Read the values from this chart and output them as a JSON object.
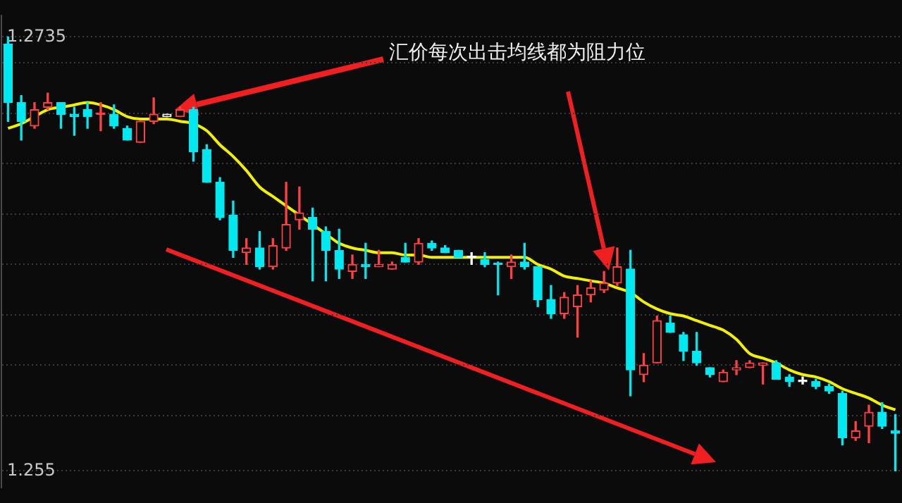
{
  "chart_data": {
    "type": "candlestick",
    "annotations": [
      "汇价每次出击均线都为阻力位"
    ],
    "categories": [
      null,
      null,
      null,
      null,
      null,
      null,
      null,
      null,
      null,
      null,
      null,
      null,
      null,
      null,
      null,
      null,
      null,
      null,
      null,
      null,
      null,
      null,
      null,
      null,
      null,
      null,
      null,
      null,
      null,
      null,
      null,
      null,
      null,
      null,
      null,
      null,
      null,
      null,
      null,
      null,
      null,
      null,
      null,
      null,
      null,
      null,
      null,
      null,
      null,
      null,
      null,
      null,
      null,
      null,
      null,
      null,
      null,
      null,
      null,
      null,
      null,
      null,
      null,
      null,
      null,
      null,
      null,
      null
    ],
    "ohlc": [
      [
        1.2732,
        1.2735,
        1.2699,
        1.2707
      ],
      [
        1.2707,
        1.271,
        1.2691,
        1.2699
      ],
      [
        1.2697,
        1.2707,
        1.2696,
        1.2704
      ],
      [
        1.2705,
        1.2711,
        1.2704,
        1.2707
      ],
      [
        1.2707,
        1.2707,
        1.2696,
        1.2702
      ],
      [
        1.2702,
        1.2705,
        1.2693,
        1.2701
      ],
      [
        1.2704,
        1.2707,
        1.2696,
        1.2701
      ],
      [
        1.2702,
        1.2707,
        1.2695,
        1.2702
      ],
      [
        1.2702,
        1.2706,
        1.2696,
        1.2697
      ],
      [
        1.2696,
        1.2697,
        1.2691,
        1.2691
      ],
      [
        1.269,
        1.2699,
        1.269,
        1.2699
      ],
      [
        1.2699,
        1.2709,
        1.2698,
        1.2702
      ],
      [
        1.2701,
        1.2702,
        1.2701,
        1.2702
      ],
      [
        1.2701,
        1.2705,
        1.2701,
        1.2704
      ],
      [
        1.2704,
        1.2705,
        1.2682,
        1.2686
      ],
      [
        1.2687,
        1.2689,
        1.2673,
        1.2673
      ],
      [
        1.2673,
        1.2675,
        1.2657,
        1.2658
      ],
      [
        1.2659,
        1.2665,
        1.2641,
        1.2644
      ],
      [
        1.2643,
        1.2649,
        1.2638,
        1.2645
      ],
      [
        1.2645,
        1.2652,
        1.2636,
        1.2637
      ],
      [
        1.2637,
        1.2649,
        1.2636,
        1.2646
      ],
      [
        1.2645,
        1.2673,
        1.2644,
        1.2655
      ],
      [
        1.2657,
        1.2671,
        1.2653,
        1.266
      ],
      [
        1.2658,
        1.2662,
        1.2631,
        1.2653
      ],
      [
        1.2652,
        1.2654,
        1.2631,
        1.2644
      ],
      [
        1.2644,
        1.2653,
        1.2632,
        1.2636
      ],
      [
        1.2635,
        1.2642,
        1.2632,
        1.2638
      ],
      [
        1.2638,
        1.2647,
        1.2632,
        1.2637
      ],
      [
        1.2637,
        1.2644,
        1.2637,
        1.2638
      ],
      [
        1.2636,
        1.2639,
        1.2636,
        1.2638
      ],
      [
        1.2641,
        1.2647,
        1.2639,
        1.2639
      ],
      [
        1.2639,
        1.2649,
        1.2638,
        1.2647
      ],
      [
        1.2647,
        1.2648,
        1.2644,
        1.2645
      ],
      [
        1.2645,
        1.2646,
        1.2643,
        1.2643
      ],
      [
        1.2644,
        1.2644,
        1.2641,
        1.2641
      ],
      [
        1.2641,
        1.2643,
        1.2638,
        1.2641
      ],
      [
        1.264,
        1.2643,
        1.2637,
        1.2638
      ],
      [
        1.2638,
        1.2639,
        1.2625,
        1.2638
      ],
      [
        1.2637,
        1.2642,
        1.2632,
        1.2639
      ],
      [
        1.2639,
        1.2647,
        1.2636,
        1.2637
      ],
      [
        1.2637,
        1.2637,
        1.262,
        1.2623
      ],
      [
        1.2623,
        1.2629,
        1.2615,
        1.2617
      ],
      [
        1.2617,
        1.2626,
        1.2615,
        1.2624
      ],
      [
        1.262,
        1.2629,
        1.2607,
        1.2625
      ],
      [
        1.2625,
        1.2631,
        1.2622,
        1.2628
      ],
      [
        1.2627,
        1.2635,
        1.2626,
        1.263
      ],
      [
        1.263,
        1.2645,
        1.2629,
        1.2637
      ],
      [
        1.2636,
        1.2644,
        1.2582,
        1.2593
      ],
      [
        1.2591,
        1.26,
        1.2588,
        1.2595
      ],
      [
        1.2596,
        1.2616,
        1.2596,
        1.2614
      ],
      [
        1.2613,
        1.2616,
        1.2609,
        1.2609
      ],
      [
        1.2608,
        1.2609,
        1.2597,
        1.2601
      ],
      [
        1.2601,
        1.2609,
        1.2595,
        1.2596
      ],
      [
        1.2594,
        1.2594,
        1.259,
        1.2591
      ],
      [
        1.2588,
        1.2593,
        1.2588,
        1.2592
      ],
      [
        1.2593,
        1.2597,
        1.2591,
        1.2594
      ],
      [
        1.2594,
        1.2597,
        1.2594,
        1.2596
      ],
      [
        1.2595,
        1.2596,
        1.2587,
        1.2596
      ],
      [
        1.2596,
        1.2597,
        1.2589,
        1.2589
      ],
      [
        1.259,
        1.2591,
        1.2586,
        1.2588
      ],
      [
        1.2588,
        1.259,
        1.2587,
        1.2588
      ],
      [
        1.2588,
        1.2589,
        1.2585,
        1.2586
      ],
      [
        1.2586,
        1.2587,
        1.2583,
        1.2584
      ],
      [
        1.2583,
        1.2584,
        1.2561,
        1.2564
      ],
      [
        1.2564,
        1.2571,
        1.2563,
        1.2567
      ],
      [
        1.2569,
        1.2578,
        1.2562,
        1.2575
      ],
      [
        1.2575,
        1.2579,
        1.2568,
        1.2569
      ],
      [
        1.2567,
        1.2574,
        1.255,
        1.2566
      ]
    ],
    "colors": [
      "#00e8f0",
      "#00e8f0",
      "#ff4040",
      "#ff4040",
      "#00e8f0",
      "#00e8f0",
      "#00e8f0",
      "#ff4040",
      "#00e8f0",
      "#00e8f0",
      "#ff4040",
      "#ff4040",
      "#ffffff",
      "#ff4040",
      "#00e8f0",
      "#00e8f0",
      "#00e8f0",
      "#00e8f0",
      "#ff4040",
      "#00e8f0",
      "#ff4040",
      "#ff4040",
      "#ff4040",
      "#00e8f0",
      "#00e8f0",
      "#00e8f0",
      "#ff4040",
      "#00e8f0",
      "#ff4040",
      "#ff4040",
      "#00e8f0",
      "#ff4040",
      "#00e8f0",
      "#00e8f0",
      "#00e8f0",
      "#ffffff",
      "#00e8f0",
      "#00e8f0",
      "#ff4040",
      "#00e8f0",
      "#00e8f0",
      "#00e8f0",
      "#ff4040",
      "#ff4040",
      "#ff4040",
      "#ff4040",
      "#ff4040",
      "#00e8f0",
      "#ff4040",
      "#ff4040",
      "#00e8f0",
      "#00e8f0",
      "#00e8f0",
      "#00e8f0",
      "#ff4040",
      "#ff4040",
      "#ff4040",
      "#ff4040",
      "#00e8f0",
      "#00e8f0",
      "#ffffff",
      "#00e8f0",
      "#00e8f0",
      "#00e8f0",
      "#ff4040",
      "#ff4040",
      "#00e8f0",
      "#00e8f0"
    ],
    "series": [
      {
        "type": "line",
        "color": "#f0f000",
        "values": [
          1.2696,
          1.2698,
          1.2701,
          1.2704,
          1.2705,
          1.2706,
          1.2707,
          1.2706,
          1.2704,
          1.2701,
          1.27,
          1.27,
          1.27,
          1.2699,
          1.2698,
          1.2695,
          1.2689,
          1.2684,
          1.2678,
          1.2671,
          1.2667,
          1.2663,
          1.2659,
          1.2655,
          1.2651,
          1.2647,
          1.2645,
          1.2644,
          1.2643,
          1.2643,
          1.2642,
          1.2642,
          1.2641,
          1.2641,
          1.2641,
          1.2641,
          1.2641,
          1.2641,
          1.2641,
          1.2641,
          1.2638,
          1.2636,
          1.2633,
          1.2632,
          1.2631,
          1.263,
          1.2628,
          1.2626,
          1.2622,
          1.2619,
          1.2617,
          1.2616,
          1.2614,
          1.2612,
          1.261,
          1.2606,
          1.26,
          1.2598,
          1.2596,
          1.2593,
          1.2591,
          1.259,
          1.2588,
          1.2585,
          1.2583,
          1.2581,
          1.2578,
          1.2576
        ]
      }
    ],
    "ylim": [
      1.2543,
      1.2744
    ],
    "yticks": [
      {
        "value": 1.2735,
        "label": "1.2735"
      },
      {
        "value": 1.2724,
        "label": null
      },
      {
        "value": 1.27025,
        "label": null
      },
      {
        "value": 1.2681,
        "label": null
      },
      {
        "value": 1.26595,
        "label": null
      },
      {
        "value": 1.2638,
        "label": null
      },
      {
        "value": 1.26165,
        "label": null
      },
      {
        "value": 1.2595,
        "label": null
      },
      {
        "value": 1.25735,
        "label": null
      },
      {
        "value": 1.255,
        "label": "1.255"
      }
    ],
    "grid": "y",
    "legend": false
  }
}
